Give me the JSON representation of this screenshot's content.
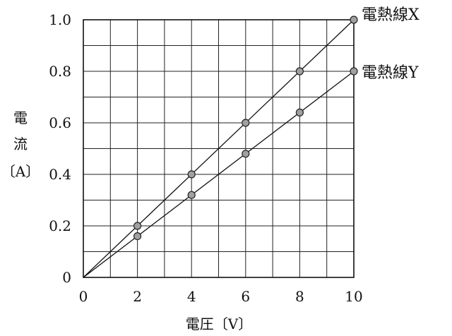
{
  "chart_data": {
    "type": "line",
    "xlabel": "電圧〔V〕",
    "ylabel": [
      "電",
      "流",
      "〔A〕"
    ],
    "xlim": [
      0,
      10
    ],
    "ylim": [
      0,
      1.0
    ],
    "grid": true,
    "x_ticks": [
      0,
      2,
      4,
      6,
      8,
      10
    ],
    "x_tick_labels": [
      "0",
      "2",
      "4",
      "6",
      "8",
      "10"
    ],
    "y_ticks": [
      0,
      0.2,
      0.4,
      0.6,
      0.8,
      1.0
    ],
    "y_tick_labels": [
      "0",
      "0.2",
      "0.4",
      "0.6",
      "0.8",
      "1.0"
    ],
    "series": [
      {
        "name": "電熱線X",
        "line": [
          [
            0,
            0
          ],
          [
            10,
            1.0
          ]
        ],
        "points": [
          [
            2,
            0.2
          ],
          [
            4,
            0.4
          ],
          [
            6,
            0.6
          ],
          [
            8,
            0.8
          ],
          [
            10,
            1.0
          ]
        ]
      },
      {
        "name": "電熱線Y",
        "line": [
          [
            0,
            0
          ],
          [
            10,
            0.8
          ]
        ],
        "points": [
          [
            2,
            0.16
          ],
          [
            4,
            0.32
          ],
          [
            6,
            0.48
          ],
          [
            8,
            0.64
          ],
          [
            10,
            0.8
          ]
        ]
      }
    ]
  }
}
